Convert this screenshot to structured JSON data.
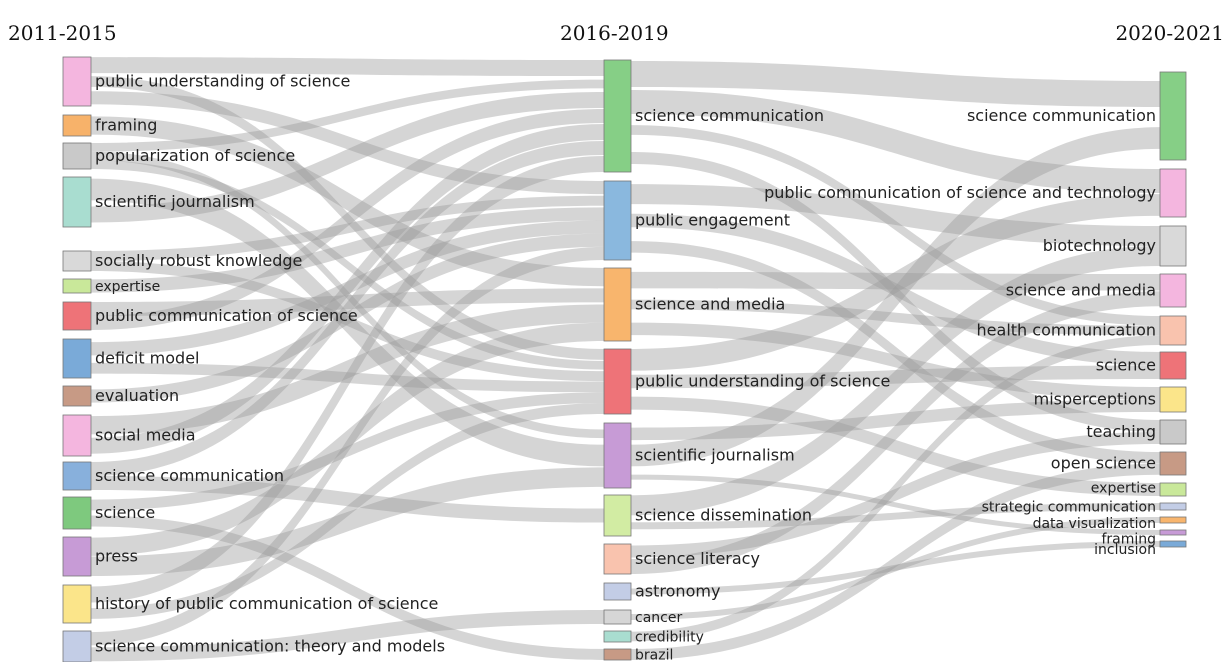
{
  "periods": [
    "2011-2015",
    "2016-2019",
    "2020-2021"
  ],
  "columns": [
    {
      "period": "2011-2015",
      "nodes": [
        {
          "id": "a1",
          "label": "public understanding of science",
          "color": "#f4b6df"
        },
        {
          "id": "a2",
          "label": "framing",
          "color": "#f7b26a"
        },
        {
          "id": "a3",
          "label": "popularization of science",
          "color": "#c9c9c9"
        },
        {
          "id": "a4",
          "label": "scientific journalism",
          "color": "#a9ddd0"
        },
        {
          "id": "a5",
          "label": "socially robust knowledge",
          "color": "#d9d9d9"
        },
        {
          "id": "a6",
          "label": "expertise",
          "color": "#c9e89a"
        },
        {
          "id": "a7",
          "label": "public communication of science",
          "color": "#ee7378"
        },
        {
          "id": "a8",
          "label": "deficit model",
          "color": "#7aaad8"
        },
        {
          "id": "a9",
          "label": "evaluation",
          "color": "#c79a85"
        },
        {
          "id": "a10",
          "label": "social media",
          "color": "#f4b6df"
        },
        {
          "id": "a11",
          "label": "science communication",
          "color": "#88b0dc"
        },
        {
          "id": "a12",
          "label": "science",
          "color": "#7ec97e"
        },
        {
          "id": "a13",
          "label": "press",
          "color": "#c79bd6"
        },
        {
          "id": "a14",
          "label": "history of public communication of science",
          "color": "#fbe58a"
        },
        {
          "id": "a15",
          "label": "science communication: theory and models",
          "color": "#c3cde6"
        }
      ]
    },
    {
      "period": "2016-2019",
      "nodes": [
        {
          "id": "b1",
          "label": "science communication",
          "color": "#86cf86"
        },
        {
          "id": "b2",
          "label": "public engagement",
          "color": "#8ab8de"
        },
        {
          "id": "b3",
          "label": "science and media",
          "color": "#f8b56d"
        },
        {
          "id": "b4",
          "label": "public understanding of science",
          "color": "#ee7378"
        },
        {
          "id": "b5",
          "label": "scientific journalism",
          "color": "#c79bd6"
        },
        {
          "id": "b6",
          "label": "science dissemination",
          "color": "#d2eca3"
        },
        {
          "id": "b7",
          "label": "science literacy",
          "color": "#f9c3ae"
        },
        {
          "id": "b8",
          "label": "astronomy",
          "color": "#c3cde6"
        },
        {
          "id": "b9",
          "label": "cancer",
          "color": "#d6d6d6"
        },
        {
          "id": "b10",
          "label": "credibility",
          "color": "#a9ddd0"
        },
        {
          "id": "b11",
          "label": "brazil",
          "color": "#c79a85"
        }
      ]
    },
    {
      "period": "2020-2021",
      "nodes": [
        {
          "id": "c1",
          "label": "science communication",
          "color": "#86cf86"
        },
        {
          "id": "c2",
          "label": "public communication of science and technology",
          "color": "#f4b6df"
        },
        {
          "id": "c3",
          "label": "biotechnology",
          "color": "#d9d9d9"
        },
        {
          "id": "c4",
          "label": "science and media",
          "color": "#f4b6df"
        },
        {
          "id": "c5",
          "label": "health communication",
          "color": "#f9c3ae"
        },
        {
          "id": "c6",
          "label": "science",
          "color": "#ee7378"
        },
        {
          "id": "c7",
          "label": "misperceptions",
          "color": "#fbe58a"
        },
        {
          "id": "c8",
          "label": "teaching",
          "color": "#c9c9c9"
        },
        {
          "id": "c9",
          "label": "open science",
          "color": "#c79a85"
        },
        {
          "id": "c10",
          "label": "expertise",
          "color": "#c9e89a"
        },
        {
          "id": "c11",
          "label": "strategic communication",
          "color": "#c3cde6"
        },
        {
          "id": "c12",
          "label": "data visualization",
          "color": "#f8b56d"
        },
        {
          "id": "c13",
          "label": "framing",
          "color": "#c79bd6"
        },
        {
          "id": "c14",
          "label": "inclusion",
          "color": "#7aaad8"
        }
      ]
    }
  ],
  "links": [
    [
      "a1",
      "b1"
    ],
    [
      "a1",
      "b4"
    ],
    [
      "a1",
      "b2"
    ],
    [
      "a2",
      "b3"
    ],
    [
      "a3",
      "b1"
    ],
    [
      "a3",
      "b5"
    ],
    [
      "a3",
      "b4"
    ],
    [
      "a4",
      "b5"
    ],
    [
      "a4",
      "b1"
    ],
    [
      "a5",
      "b2"
    ],
    [
      "a5",
      "b4"
    ],
    [
      "a6",
      "b2"
    ],
    [
      "a7",
      "b3"
    ],
    [
      "a7",
      "b1"
    ],
    [
      "a8",
      "b2"
    ],
    [
      "a8",
      "b4"
    ],
    [
      "a9",
      "b2"
    ],
    [
      "a10",
      "b3"
    ],
    [
      "a10",
      "b1"
    ],
    [
      "a11",
      "b1"
    ],
    [
      "a11",
      "b6"
    ],
    [
      "a12",
      "b4"
    ],
    [
      "a12",
      "b11"
    ],
    [
      "a13",
      "b3"
    ],
    [
      "a13",
      "b5"
    ],
    [
      "a14",
      "b1"
    ],
    [
      "a14",
      "b4"
    ],
    [
      "a15",
      "b2"
    ],
    [
      "a15",
      "b9"
    ],
    [
      "b1",
      "c1"
    ],
    [
      "b1",
      "c2"
    ],
    [
      "b1",
      "c5"
    ],
    [
      "b1",
      "c8"
    ],
    [
      "b2",
      "c3"
    ],
    [
      "b2",
      "c6"
    ],
    [
      "b2",
      "c9"
    ],
    [
      "b3",
      "c4"
    ],
    [
      "b3",
      "c5"
    ],
    [
      "b3",
      "c7"
    ],
    [
      "b4",
      "c2"
    ],
    [
      "b4",
      "c6"
    ],
    [
      "b4",
      "c10"
    ],
    [
      "b5",
      "c7"
    ],
    [
      "b5",
      "c1"
    ],
    [
      "b5",
      "c13"
    ],
    [
      "b6",
      "c3"
    ],
    [
      "b6",
      "c11"
    ],
    [
      "b7",
      "c8"
    ],
    [
      "b7",
      "c4"
    ],
    [
      "b8",
      "c14"
    ],
    [
      "b9",
      "c12"
    ],
    [
      "b10",
      "c5"
    ],
    [
      "b11",
      "c9"
    ]
  ]
}
